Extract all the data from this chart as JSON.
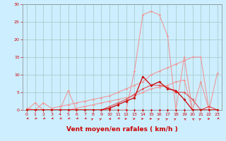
{
  "xlabel": "Vent moyen/en rafales ( km/h )",
  "background_color": "#cceeff",
  "grid_color": "#aacccc",
  "xlim": [
    -0.5,
    23.5
  ],
  "ylim": [
    0,
    30
  ],
  "yticks": [
    0,
    5,
    10,
    15,
    20,
    25,
    30
  ],
  "xticks": [
    0,
    1,
    2,
    3,
    4,
    5,
    6,
    7,
    8,
    9,
    10,
    11,
    12,
    13,
    14,
    15,
    16,
    17,
    18,
    19,
    20,
    21,
    22,
    23
  ],
  "tick_color": "#cc0000",
  "tick_fontsize": 4.5,
  "xlabel_fontsize": 6.5,
  "xlabel_color": "#cc0000",
  "series": [
    {
      "label": "flat_zero_dark",
      "x": [
        0,
        1,
        2,
        3,
        4,
        5,
        6,
        7,
        8,
        9,
        10,
        11,
        12,
        13,
        14,
        15,
        16,
        17,
        18,
        19,
        20,
        21,
        22,
        23
      ],
      "y": [
        0,
        0,
        0,
        0,
        0,
        0,
        0,
        0,
        0,
        0,
        0,
        0,
        0,
        0,
        0,
        0,
        0,
        0,
        0,
        0,
        0,
        0,
        0,
        0
      ],
      "color": "#cc0000",
      "linewidth": 0.8,
      "markersize": 1.8,
      "zorder": 6
    },
    {
      "label": "dark_red_bump",
      "x": [
        0,
        1,
        2,
        3,
        4,
        5,
        6,
        7,
        8,
        9,
        10,
        11,
        12,
        13,
        14,
        15,
        16,
        17,
        18,
        19,
        20,
        21,
        22,
        23
      ],
      "y": [
        0,
        0,
        0,
        0,
        0,
        0,
        0,
        0,
        0,
        0,
        0.5,
        1.5,
        2.5,
        3.5,
        9.5,
        7,
        8,
        6,
        5.5,
        3,
        0,
        0,
        0,
        0
      ],
      "color": "#cc0000",
      "linewidth": 0.9,
      "markersize": 2.0,
      "zorder": 6
    },
    {
      "label": "med_dark_red",
      "x": [
        0,
        1,
        2,
        3,
        4,
        5,
        6,
        7,
        8,
        9,
        10,
        11,
        12,
        13,
        14,
        15,
        16,
        17,
        18,
        19,
        20,
        21,
        22,
        23
      ],
      "y": [
        0,
        0,
        0,
        0,
        0,
        0,
        0,
        0,
        0,
        0,
        1,
        2,
        3,
        4.5,
        6,
        7,
        7,
        6.5,
        5,
        5,
        3,
        0,
        1,
        0
      ],
      "color": "#dd5555",
      "linewidth": 0.8,
      "markersize": 1.8,
      "zorder": 5
    },
    {
      "label": "pink_rising_steep",
      "x": [
        0,
        1,
        2,
        3,
        4,
        5,
        6,
        7,
        8,
        9,
        10,
        11,
        12,
        13,
        14,
        15,
        16,
        17,
        18,
        19,
        20,
        21,
        22,
        23
      ],
      "y": [
        0,
        0,
        2,
        0.5,
        1,
        1.5,
        2,
        2.5,
        3,
        3.5,
        4,
        5,
        6,
        7,
        8,
        10,
        11,
        12,
        13,
        14,
        15,
        15,
        0,
        10.5
      ],
      "color": "#ee9999",
      "linewidth": 0.8,
      "markersize": 1.8,
      "zorder": 4
    },
    {
      "label": "pink_medium_rise",
      "x": [
        0,
        1,
        2,
        3,
        4,
        5,
        6,
        7,
        8,
        9,
        10,
        11,
        12,
        13,
        14,
        15,
        16,
        17,
        18,
        19,
        20,
        21,
        22,
        23
      ],
      "y": [
        0.5,
        0,
        0,
        0,
        0,
        0,
        0.5,
        1,
        1.5,
        2,
        2.5,
        3,
        3.5,
        4,
        5,
        6,
        6.5,
        7,
        8,
        8.5,
        0,
        8,
        0,
        0
      ],
      "color": "#ee9999",
      "linewidth": 0.8,
      "markersize": 1.8,
      "zorder": 4
    },
    {
      "label": "pink_big_peak",
      "x": [
        0,
        1,
        2,
        3,
        4,
        5,
        6,
        7,
        8,
        9,
        10,
        11,
        12,
        13,
        14,
        15,
        16,
        17,
        18,
        19,
        20,
        21,
        22,
        23
      ],
      "y": [
        0,
        2,
        0,
        0,
        0,
        5.5,
        0,
        0,
        0,
        0,
        0,
        0,
        0,
        11,
        27,
        28,
        27,
        21,
        0,
        15,
        0,
        0,
        1,
        0
      ],
      "color": "#ee9999",
      "linewidth": 0.8,
      "markersize": 1.8,
      "zorder": 3
    }
  ],
  "wind_angles": [
    225,
    225,
    225,
    225,
    225,
    225,
    225,
    225,
    45,
    45,
    270,
    225,
    90,
    90,
    90,
    90,
    45,
    45,
    45,
    315,
    315,
    45,
    90,
    225
  ]
}
